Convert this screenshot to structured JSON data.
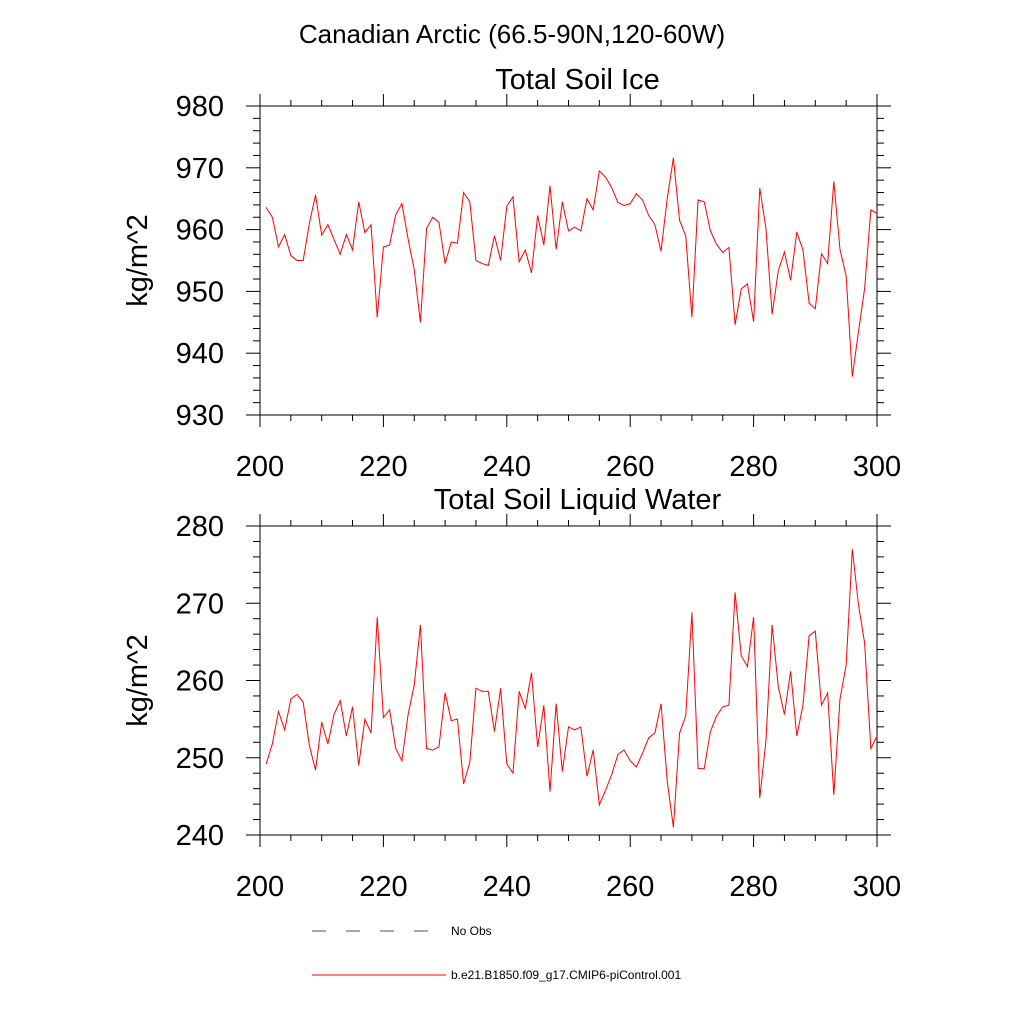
{
  "figure_title": "Canadian Arctic (66.5-90N,120-60W)",
  "legend": [
    {
      "label": "No Obs",
      "style": "dashed",
      "color": "#4a4a7a"
    },
    {
      "label": "b.e21.B1850.f09_g17.CMIP6-piControl.001",
      "style": "solid",
      "color": "#ff0000"
    }
  ],
  "chart_data": [
    {
      "type": "line",
      "title": "Total Soil Ice",
      "xlabel": "",
      "ylabel": "kg/m^2",
      "xlim": [
        200,
        300
      ],
      "ylim": [
        930,
        980
      ],
      "xticks": [
        "200",
        "220",
        "240",
        "260",
        "280",
        "300"
      ],
      "yticks": [
        "930",
        "940",
        "950",
        "960",
        "970",
        "980"
      ],
      "series": [
        {
          "name": "b.e21.B1850.f09_g17.CMIP6-piControl.001",
          "color": "#ff0000",
          "x": [
            201,
            202,
            203,
            204,
            205,
            206,
            207,
            208,
            209,
            210,
            211,
            212,
            213,
            214,
            215,
            216,
            217,
            218,
            219,
            220,
            221,
            222,
            223,
            224,
            225,
            226,
            227,
            228,
            229,
            230,
            231,
            232,
            233,
            234,
            235,
            236,
            237,
            238,
            239,
            240,
            241,
            242,
            243,
            244,
            245,
            246,
            247,
            248,
            249,
            250,
            251,
            252,
            253,
            254,
            255,
            256,
            257,
            258,
            259,
            260,
            261,
            262,
            263,
            264,
            265,
            266,
            267,
            268,
            269,
            270,
            271,
            272,
            273,
            274,
            275,
            276,
            277,
            278,
            279,
            280,
            281,
            282,
            283,
            284,
            285,
            286,
            287,
            288,
            289,
            290,
            291,
            292,
            293,
            294,
            295,
            296,
            297,
            298,
            299,
            300
          ],
          "values": [
            963.6,
            962.0,
            957.2,
            959.2,
            955.8,
            955.0,
            955.0,
            961.0,
            965.6,
            959.1,
            960.8,
            958.4,
            956.0,
            959.2,
            956.7,
            964.5,
            959.5,
            960.8,
            945.8,
            957.2,
            957.5,
            962.4,
            964.2,
            958.5,
            953.5,
            945.0,
            960.2,
            962.0,
            961.2,
            954.5,
            958.0,
            957.8,
            966.0,
            964.5,
            955.0,
            954.5,
            954.2,
            959.0,
            955.0,
            963.8,
            965.3,
            954.8,
            956.7,
            953.0,
            962.3,
            957.5,
            967.1,
            956.8,
            964.5,
            959.8,
            960.4,
            959.8,
            965.0,
            963.2,
            969.5,
            968.5,
            966.8,
            964.4,
            963.9,
            964.2,
            965.8,
            964.8,
            962.3,
            960.8,
            956.5,
            965.0,
            971.6,
            961.5,
            959.0,
            945.8,
            964.8,
            964.5,
            959.8,
            957.6,
            956.3,
            957.1,
            944.6,
            950.4,
            951.2,
            945.1,
            966.7,
            960.2,
            946.3,
            953.3,
            956.4,
            951.8,
            959.6,
            956.7,
            948.1,
            947.2,
            956.1,
            954.5,
            967.8,
            956.8,
            952.5,
            936.2,
            943.5,
            950.5,
            963.2,
            962.6
          ]
        }
      ]
    },
    {
      "type": "line",
      "title": "Total Soil Liquid Water",
      "xlabel": "",
      "ylabel": "kg/m^2",
      "xlim": [
        200,
        300
      ],
      "ylim": [
        240,
        280
      ],
      "xticks": [
        "200",
        "220",
        "240",
        "260",
        "280",
        "300"
      ],
      "yticks": [
        "240",
        "250",
        "260",
        "270",
        "280"
      ],
      "series": [
        {
          "name": "b.e21.B1850.f09_g17.CMIP6-piControl.001",
          "color": "#ff0000",
          "x": [
            201,
            202,
            203,
            204,
            205,
            206,
            207,
            208,
            209,
            210,
            211,
            212,
            213,
            214,
            215,
            216,
            217,
            218,
            219,
            220,
            221,
            222,
            223,
            224,
            225,
            226,
            227,
            228,
            229,
            230,
            231,
            232,
            233,
            234,
            235,
            236,
            237,
            238,
            239,
            240,
            241,
            242,
            243,
            244,
            245,
            246,
            247,
            248,
            249,
            250,
            251,
            252,
            253,
            254,
            255,
            256,
            257,
            258,
            259,
            260,
            261,
            262,
            263,
            264,
            265,
            266,
            267,
            268,
            269,
            270,
            271,
            272,
            273,
            274,
            275,
            276,
            277,
            278,
            279,
            280,
            281,
            282,
            283,
            284,
            285,
            286,
            287,
            288,
            289,
            290,
            291,
            292,
            293,
            294,
            295,
            296,
            297,
            298,
            299,
            300
          ],
          "values": [
            249.2,
            251.8,
            256.0,
            253.6,
            257.6,
            258.2,
            257.2,
            251.6,
            248.4,
            254.6,
            251.8,
            255.6,
            257.4,
            252.8,
            256.6,
            249.0,
            255.0,
            253.2,
            268.2,
            255.2,
            256.2,
            251.2,
            249.6,
            255.6,
            259.4,
            267.2,
            251.2,
            251.0,
            251.4,
            258.4,
            254.8,
            255.0,
            246.6,
            249.4,
            259.0,
            258.6,
            258.6,
            253.4,
            259.0,
            249.2,
            248.0,
            258.6,
            256.4,
            261.0,
            251.4,
            256.8,
            245.6,
            257.0,
            248.2,
            254.0,
            253.6,
            254.0,
            247.6,
            251.0,
            243.9,
            245.8,
            247.8,
            250.4,
            251.0,
            249.6,
            248.8,
            250.6,
            252.6,
            253.2,
            257.0,
            247.0,
            241.0,
            253.2,
            255.4,
            268.8,
            248.6,
            248.6,
            253.4,
            255.4,
            256.6,
            256.8,
            271.4,
            263.2,
            261.8,
            268.2,
            244.8,
            252.2,
            267.2,
            259.2,
            255.6,
            261.2,
            252.8,
            256.8,
            265.8,
            266.4,
            256.8,
            258.4,
            245.2,
            257.6,
            262.0,
            277.0,
            269.8,
            264.8,
            251.2,
            252.8
          ]
        }
      ]
    }
  ]
}
